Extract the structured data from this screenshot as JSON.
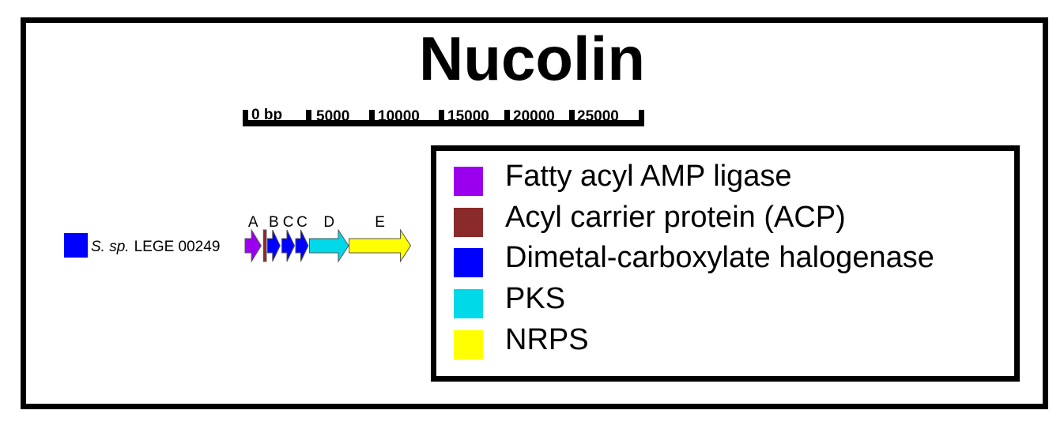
{
  "title": "Nucolin",
  "scale_bar": {
    "unit_label": "0 bp",
    "tick_labels": [
      "5000",
      "10000",
      "15000",
      "20000",
      "25000"
    ]
  },
  "organism": {
    "name_italic": "S. sp.",
    "strain": "LEGE 00249",
    "swatch_color": "#0000ff"
  },
  "genes": [
    {
      "label": "A",
      "category": "Fatty acyl AMP ligase",
      "color": "#9b00ee",
      "start_bp": 0,
      "end_bp": 1400
    },
    {
      "label": "",
      "category": "Acyl carrier protein (ACP)",
      "color": "#8b2a2a",
      "start_bp": 1600,
      "end_bp": 1850
    },
    {
      "label": "B",
      "category": "Dimetal-carboxylate halogenase",
      "color": "#0000ff",
      "start_bp": 1950,
      "end_bp": 3050
    },
    {
      "label": "C",
      "category": "Dimetal-carboxylate halogenase",
      "color": "#0000ff",
      "start_bp": 3200,
      "end_bp": 4300
    },
    {
      "label": "C",
      "category": "Dimetal-carboxylate halogenase",
      "color": "#0000ff",
      "start_bp": 4400,
      "end_bp": 5500
    },
    {
      "label": "D",
      "category": "PKS",
      "color": "#00d9e8",
      "start_bp": 5600,
      "end_bp": 9000
    },
    {
      "label": "E",
      "category": "NRPS",
      "color": "#ffff00",
      "start_bp": 9050,
      "end_bp": 14400
    }
  ],
  "legend": [
    {
      "label": "Fatty acyl AMP ligase",
      "color": "#9b00ee"
    },
    {
      "label": "Acyl carrier protein (ACP)",
      "color": "#8b2a2a"
    },
    {
      "label": "Dimetal-carboxylate halogenase",
      "color": "#0000ff"
    },
    {
      "label": "PKS",
      "color": "#00d9e8"
    },
    {
      "label": "NRPS",
      "color": "#ffff00"
    }
  ]
}
